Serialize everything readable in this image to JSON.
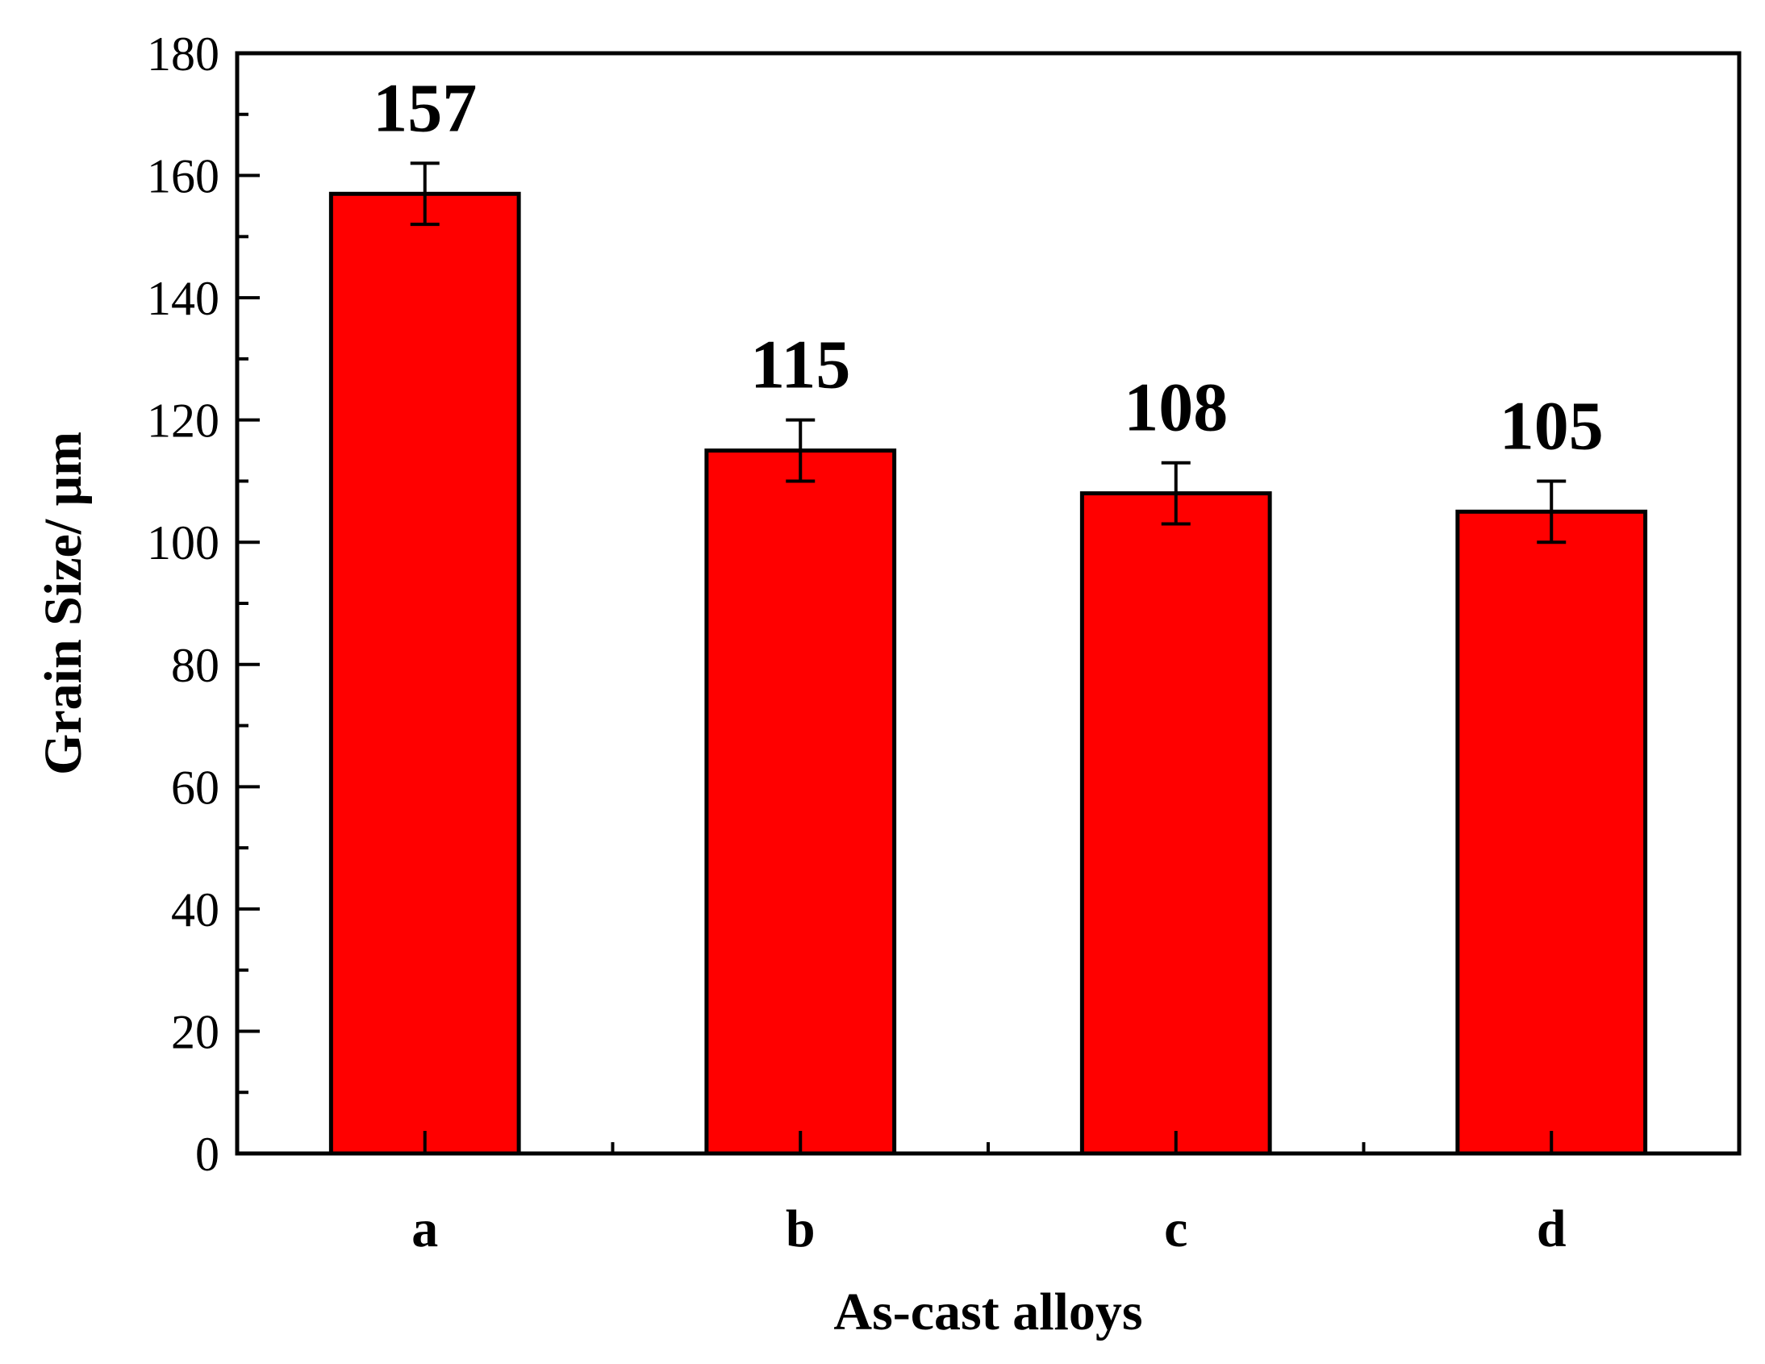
{
  "chart_data": {
    "type": "bar",
    "categories": [
      "a",
      "b",
      "c",
      "d"
    ],
    "values": [
      157,
      115,
      108,
      105
    ],
    "errors": [
      5,
      5,
      5,
      5
    ],
    "data_labels": [
      "157",
      "115",
      "108",
      "105"
    ],
    "xlabel": "As-cast alloys",
    "ylabel": "Grain Size/  μm",
    "ylim": [
      0,
      180
    ],
    "yticks": [
      0,
      20,
      40,
      60,
      80,
      100,
      120,
      140,
      160,
      180
    ],
    "ytick_labels": [
      "0",
      "20",
      "40",
      "60",
      "80",
      "100",
      "120",
      "140",
      "160",
      "180"
    ],
    "grid": false,
    "bar_color": "#ff0000",
    "edge_color": "#000000"
  }
}
